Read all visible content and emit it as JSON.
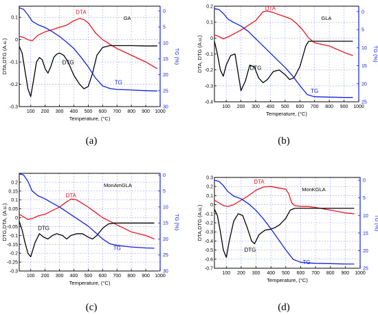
{
  "colors": {
    "dta": "#e8141e",
    "dtg": "#000000",
    "tg": "#1020e0",
    "grid": "#9aa6ff",
    "axis": "#000000",
    "tg_axis": "#1020e0"
  },
  "chart_data": [
    {
      "type": "line",
      "panel_label": "(a)",
      "sample_label": "GA",
      "xlabel": "Temperature, (°C)",
      "ylabel_left": "DTA,DTG (A.u.)",
      "ylabel_right": "TG (%)",
      "xlim": [
        20,
        1000
      ],
      "ylim_left": [
        -0.3,
        0.15
      ],
      "ylim_right": [
        30,
        -1.5
      ],
      "x_ticks": [
        "100",
        "200",
        "300",
        "400",
        "500",
        "600",
        "700",
        "800",
        "900",
        "1000"
      ],
      "y_left_ticks": [
        "0.1",
        "0",
        "-0.1",
        "-0.2",
        "-0.3"
      ],
      "y_right_ticks": [
        "0",
        "5",
        "10",
        "15",
        "20",
        "25",
        "30"
      ],
      "series": [
        {
          "name": "DTA",
          "axis": "left",
          "color": "#e8141e",
          "label_at": [
            450,
            0.115
          ],
          "x": [
            20,
            50,
            80,
            110,
            150,
            200,
            250,
            300,
            350,
            400,
            440,
            470,
            500,
            550,
            600,
            650,
            700,
            800,
            900,
            980
          ],
          "y": [
            0.015,
            0.01,
            0.0,
            -0.005,
            0.02,
            0.035,
            0.045,
            0.055,
            0.065,
            0.085,
            0.095,
            0.09,
            0.075,
            0.03,
            0.0,
            -0.02,
            -0.04,
            -0.07,
            -0.1,
            -0.13
          ]
        },
        {
          "name": "DTG",
          "axis": "left",
          "color": "#000000",
          "label_at": [
            360,
            -0.11
          ],
          "x": [
            20,
            40,
            60,
            80,
            100,
            120,
            140,
            160,
            180,
            200,
            220,
            240,
            260,
            280,
            300,
            330,
            360,
            400,
            440,
            470,
            500,
            530,
            560,
            600,
            650,
            700,
            800,
            900,
            980
          ],
          "y": [
            -0.03,
            -0.06,
            -0.14,
            -0.22,
            -0.255,
            -0.18,
            -0.1,
            -0.08,
            -0.09,
            -0.13,
            -0.15,
            -0.12,
            -0.08,
            -0.065,
            -0.06,
            -0.07,
            -0.1,
            -0.16,
            -0.2,
            -0.22,
            -0.21,
            -0.15,
            -0.07,
            -0.035,
            -0.027,
            -0.027,
            -0.027,
            -0.028,
            -0.028
          ]
        },
        {
          "name": "TG",
          "axis": "right",
          "color": "#1020e0",
          "label_at": [
            710,
            23
          ],
          "x": [
            20,
            50,
            80,
            110,
            150,
            200,
            250,
            300,
            350,
            400,
            450,
            500,
            550,
            600,
            650,
            700,
            800,
            900,
            980
          ],
          "y": [
            -1.0,
            -0.5,
            1.2,
            3.2,
            4.3,
            5.2,
            6.5,
            8.0,
            9.8,
            11.8,
            14.5,
            17.5,
            21.0,
            23.5,
            24.3,
            24.6,
            24.8,
            25.0,
            25.1
          ]
        }
      ]
    },
    {
      "type": "line",
      "panel_label": "(b)",
      "sample_label": "GLA",
      "xlabel": "Temperature, (°C)",
      "ylabel_left": "DTA, DTG (A.u.)",
      "ylabel_right": "TG (%)",
      "xlim": [
        20,
        1000
      ],
      "ylim_left": [
        -0.4,
        0.2
      ],
      "ylim_right": [
        25,
        -1.5
      ],
      "x_ticks": [
        "100",
        "200",
        "300",
        "400",
        "500",
        "600",
        "700",
        "800",
        "900",
        "1000"
      ],
      "y_left_ticks": [
        "0.2",
        "0.1",
        "0",
        "-0.1",
        "-0.2",
        "-0.3",
        "-0.4"
      ],
      "y_right_ticks": [
        "0",
        "5",
        "10",
        "15",
        "20",
        "25"
      ],
      "series": [
        {
          "name": "DTA",
          "axis": "left",
          "color": "#e8141e",
          "label_at": [
            400,
            0.175
          ],
          "x": [
            20,
            50,
            80,
            120,
            160,
            200,
            250,
            300,
            350,
            380,
            420,
            480,
            540,
            580,
            620,
            660,
            700,
            800,
            900,
            960
          ],
          "y": [
            0.02,
            0.01,
            -0.005,
            0.01,
            0.03,
            0.05,
            0.08,
            0.11,
            0.165,
            0.17,
            0.16,
            0.14,
            0.12,
            0.09,
            0.05,
            0.0,
            -0.03,
            -0.05,
            -0.09,
            -0.11
          ]
        },
        {
          "name": "DTG",
          "axis": "left",
          "color": "#000000",
          "label_at": [
            300,
            -0.2
          ],
          "x": [
            20,
            40,
            60,
            80,
            100,
            130,
            160,
            200,
            230,
            260,
            290,
            320,
            350,
            380,
            420,
            460,
            500,
            530,
            560,
            600,
            640,
            660,
            700,
            800,
            900,
            960
          ],
          "y": [
            -0.02,
            -0.1,
            -0.2,
            -0.24,
            -0.17,
            -0.11,
            -0.1,
            -0.33,
            -0.27,
            -0.17,
            -0.18,
            -0.25,
            -0.28,
            -0.26,
            -0.21,
            -0.2,
            -0.23,
            -0.26,
            -0.25,
            -0.18,
            -0.05,
            -0.02,
            -0.02,
            -0.02,
            -0.02,
            -0.02
          ]
        },
        {
          "name": "TG",
          "axis": "right",
          "color": "#1020e0",
          "label_at": [
            700,
            22.5
          ],
          "x": [
            20,
            50,
            80,
            110,
            150,
            200,
            250,
            300,
            350,
            400,
            450,
            500,
            550,
            600,
            650,
            700,
            800,
            900,
            960
          ],
          "y": [
            -0.8,
            -0.6,
            0.5,
            2.0,
            3.0,
            4.0,
            5.5,
            7.5,
            9.5,
            11.5,
            13.5,
            15.5,
            17.8,
            20.5,
            23.0,
            23.6,
            23.7,
            23.8,
            23.8
          ]
        }
      ]
    },
    {
      "type": "line",
      "panel_label": "(c)",
      "sample_label": "MonAmGLA",
      "xlabel": "Temperature, (°C)",
      "ylabel_left": "DTG,DTA, (A.u.)",
      "ylabel_right": "TG (%)",
      "xlim": [
        20,
        1000
      ],
      "ylim_left": [
        -0.3,
        0.25
      ],
      "ylim_right": [
        30,
        -0.5
      ],
      "x_ticks": [
        "100",
        "200",
        "300",
        "400",
        "500",
        "600",
        "700",
        "800",
        "900",
        "1000"
      ],
      "y_left_ticks": [
        "0.2",
        "0.15",
        "0.1",
        "0.05",
        "0",
        "-0.05",
        "-0.1",
        "-0.15",
        "-0.2",
        "-0.25",
        "-0.3"
      ],
      "y_right_ticks": [
        "0",
        "5",
        "10",
        "15",
        "20",
        "25",
        "30"
      ],
      "series": [
        {
          "name": "DTA",
          "axis": "left",
          "color": "#e8141e",
          "label_at": [
            380,
            0.115
          ],
          "x": [
            20,
            50,
            80,
            110,
            150,
            200,
            250,
            300,
            350,
            380,
            420,
            460,
            500,
            550,
            600,
            650,
            700,
            800,
            900,
            960
          ],
          "y": [
            0.02,
            0.005,
            -0.01,
            -0.005,
            0.01,
            0.02,
            0.04,
            0.06,
            0.09,
            0.105,
            0.1,
            0.08,
            0.06,
            0.03,
            0.0,
            -0.02,
            -0.04,
            -0.08,
            -0.1,
            -0.12
          ]
        },
        {
          "name": "DTG",
          "axis": "left",
          "color": "#000000",
          "label_at": [
            190,
            -0.07
          ],
          "x": [
            20,
            40,
            60,
            80,
            100,
            130,
            160,
            190,
            220,
            250,
            280,
            320,
            350,
            380,
            420,
            460,
            500,
            530,
            560,
            600,
            640,
            680,
            720,
            800,
            900,
            960
          ],
          "y": [
            -0.02,
            -0.07,
            -0.14,
            -0.2,
            -0.22,
            -0.14,
            -0.09,
            -0.11,
            -0.12,
            -0.1,
            -0.09,
            -0.1,
            -0.12,
            -0.1,
            -0.09,
            -0.09,
            -0.11,
            -0.12,
            -0.1,
            -0.06,
            -0.035,
            -0.03,
            -0.03,
            -0.03,
            -0.03,
            -0.03
          ]
        },
        {
          "name": "TG",
          "axis": "right",
          "color": "#1020e0",
          "label_at": [
            700,
            23.5
          ],
          "x": [
            20,
            50,
            80,
            110,
            150,
            200,
            250,
            300,
            350,
            400,
            450,
            500,
            550,
            600,
            650,
            700,
            800,
            900,
            960
          ],
          "y": [
            -0.3,
            0.0,
            2.0,
            5.0,
            6.5,
            7.5,
            8.8,
            10.0,
            11.5,
            13.0,
            14.5,
            16.0,
            18.0,
            20.0,
            21.5,
            22.0,
            22.5,
            22.8,
            22.9
          ]
        }
      ]
    },
    {
      "type": "line",
      "panel_label": "(d)",
      "sample_label": "MonKGLA",
      "xlabel": "Temperature, (°C)",
      "ylabel_left": "DTA,DTG (A.u.)",
      "ylabel_right": "TG (%)",
      "xlim": [
        20,
        1000
      ],
      "ylim_left": [
        -0.7,
        0.3
      ],
      "ylim_right": [
        25,
        -0.8
      ],
      "x_ticks": [
        "100",
        "200",
        "300",
        "400",
        "500",
        "600",
        "700",
        "800",
        "900",
        "1000"
      ],
      "y_left_ticks": [
        "0.3",
        "0.2",
        "0.1",
        "0",
        "-0.1",
        "-0.2",
        "-0.3",
        "-0.4",
        "-0.5",
        "-0.6",
        "-0.7"
      ],
      "y_right_ticks": [
        "0",
        "5",
        "10",
        "15",
        "20",
        "25"
      ],
      "series": [
        {
          "name": "DTA",
          "axis": "left",
          "color": "#e8141e",
          "label_at": [
            320,
            0.23
          ],
          "x": [
            20,
            50,
            80,
            110,
            150,
            200,
            250,
            300,
            350,
            400,
            450,
            500,
            520,
            540,
            560,
            600,
            650,
            700,
            800,
            900,
            960
          ],
          "y": [
            0.05,
            0.02,
            -0.01,
            -0.02,
            0.0,
            0.05,
            0.1,
            0.16,
            0.195,
            0.2,
            0.185,
            0.17,
            0.12,
            0.02,
            -0.01,
            -0.02,
            -0.02,
            -0.03,
            -0.06,
            -0.09,
            -0.1
          ]
        },
        {
          "name": "DTG",
          "axis": "left",
          "color": "#000000",
          "label_at": [
            260,
            -0.52
          ],
          "x": [
            20,
            40,
            60,
            80,
            100,
            120,
            150,
            180,
            210,
            240,
            270,
            290,
            320,
            360,
            400,
            430,
            460,
            500,
            530,
            560,
            600,
            700,
            800,
            900,
            960
          ],
          "y": [
            -0.05,
            -0.12,
            -0.3,
            -0.5,
            -0.58,
            -0.4,
            -0.18,
            -0.1,
            -0.12,
            -0.25,
            -0.4,
            -0.43,
            -0.33,
            -0.28,
            -0.27,
            -0.25,
            -0.22,
            -0.15,
            -0.06,
            -0.04,
            -0.04,
            -0.04,
            -0.04,
            -0.04,
            -0.04
          ]
        },
        {
          "name": "TG",
          "axis": "right",
          "color": "#1020e0",
          "label_at": [
            640,
            23.8
          ],
          "x": [
            20,
            50,
            80,
            110,
            150,
            200,
            250,
            300,
            350,
            400,
            450,
            500,
            550,
            600,
            650,
            700,
            800,
            900,
            960
          ],
          "y": [
            0.0,
            0.3,
            1.5,
            3.2,
            4.5,
            5.3,
            6.7,
            8.6,
            11.0,
            13.8,
            16.8,
            19.8,
            22.5,
            23.3,
            23.5,
            23.6,
            23.7,
            23.8,
            23.8
          ]
        }
      ]
    }
  ]
}
